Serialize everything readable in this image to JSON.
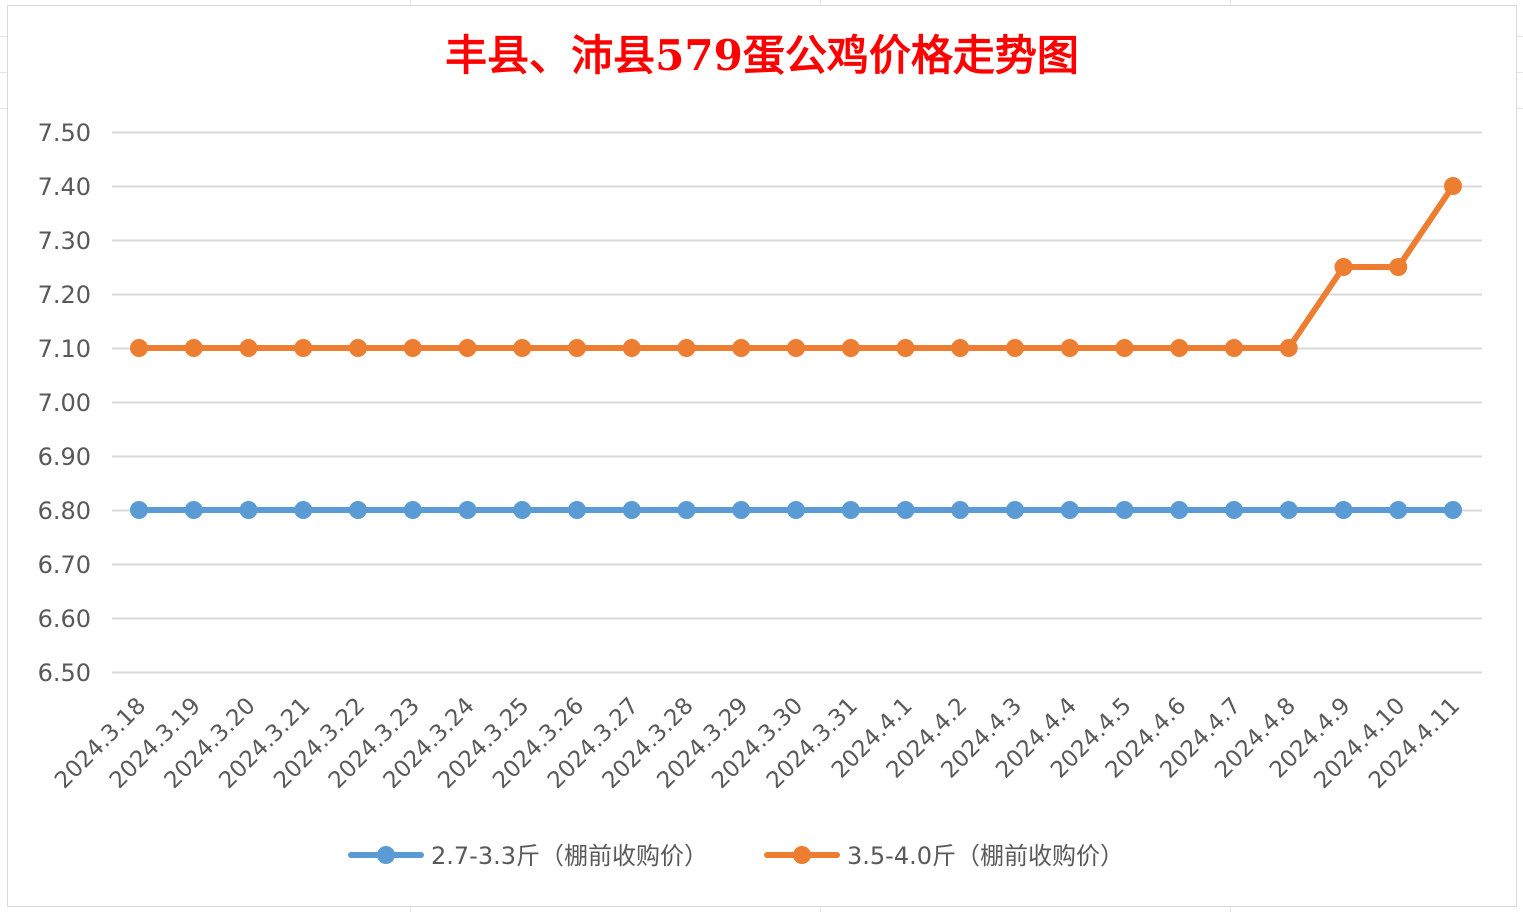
{
  "colors": {
    "series_blue": "#5b9bd5",
    "series_orange": "#ed7d31",
    "title_red": "#ff0000",
    "gridline": "#d9d9d9",
    "text_gray": "#595959"
  },
  "chart_data": {
    "type": "line",
    "title": "丰县、沛县579蛋公鸡价格走势图",
    "xlabel": "",
    "ylabel": "",
    "ylim": [
      6.5,
      7.5
    ],
    "ytick_step": 0.1,
    "ytick_labels": [
      "6.50",
      "6.60",
      "6.70",
      "6.80",
      "6.90",
      "7.00",
      "7.10",
      "7.20",
      "7.30",
      "7.40",
      "7.50"
    ],
    "grid": true,
    "legend_position": "bottom",
    "categories": [
      "2024.3.18",
      "2024.3.19",
      "2024.3.20",
      "2024.3.21",
      "2024.3.22",
      "2024.3.23",
      "2024.3.24",
      "2024.3.25",
      "2024.3.26",
      "2024.3.27",
      "2024.3.28",
      "2024.3.29",
      "2024.3.30",
      "2024.3.31",
      "2024.4.1",
      "2024.4.2",
      "2024.4.3",
      "2024.4.4",
      "2024.4.5",
      "2024.4.6",
      "2024.4.7",
      "2024.4.8",
      "2024.4.9",
      "2024.4.10",
      "2024.4.11"
    ],
    "series": [
      {
        "name": "2.7-3.3斤（棚前收购价）",
        "color": "#5b9bd5",
        "values": [
          6.8,
          6.8,
          6.8,
          6.8,
          6.8,
          6.8,
          6.8,
          6.8,
          6.8,
          6.8,
          6.8,
          6.8,
          6.8,
          6.8,
          6.8,
          6.8,
          6.8,
          6.8,
          6.8,
          6.8,
          6.8,
          6.8,
          6.8,
          6.8,
          6.8
        ]
      },
      {
        "name": "3.5-4.0斤（棚前收购价）",
        "color": "#ed7d31",
        "values": [
          7.1,
          7.1,
          7.1,
          7.1,
          7.1,
          7.1,
          7.1,
          7.1,
          7.1,
          7.1,
          7.1,
          7.1,
          7.1,
          7.1,
          7.1,
          7.1,
          7.1,
          7.1,
          7.1,
          7.1,
          7.1,
          7.1,
          7.25,
          7.25,
          7.4
        ]
      }
    ]
  }
}
